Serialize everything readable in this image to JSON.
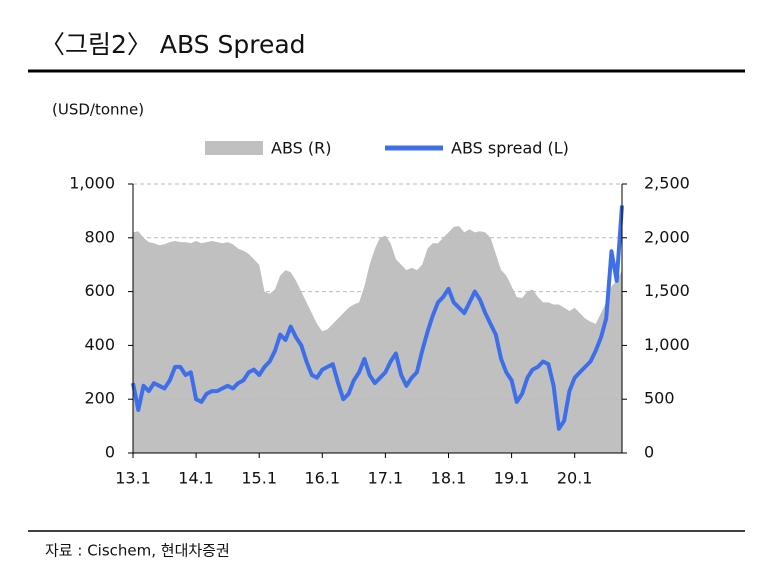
{
  "chart_data": {
    "type": "area-line",
    "title": "〈그림2〉 ABS Spread",
    "y_label": "(USD/tonne)",
    "source": "자료 : Cischem, 현대차증권",
    "categories": [
      "13.1",
      null,
      null,
      null,
      null,
      null,
      null,
      null,
      null,
      null,
      null,
      null,
      "14.1",
      null,
      null,
      null,
      null,
      null,
      null,
      null,
      null,
      null,
      null,
      null,
      "15.1",
      null,
      null,
      null,
      null,
      null,
      null,
      null,
      null,
      null,
      null,
      null,
      "16.1",
      null,
      null,
      null,
      null,
      null,
      null,
      null,
      null,
      null,
      null,
      null,
      "17.1",
      null,
      null,
      null,
      null,
      null,
      null,
      null,
      null,
      null,
      null,
      null,
      "18.1",
      null,
      null,
      null,
      null,
      null,
      null,
      null,
      null,
      null,
      null,
      null,
      "19.1",
      null,
      null,
      null,
      null,
      null,
      null,
      null,
      null,
      null,
      null,
      null,
      "20.1",
      null,
      null,
      null,
      null,
      null,
      null,
      null,
      null,
      null
    ],
    "series": [
      {
        "name": "ABS (R)",
        "color": "#c0c0c0",
        "axis": "y2",
        "kind": "area",
        "values": [
          2050,
          2060,
          2000,
          1960,
          1950,
          1930,
          1940,
          1960,
          1970,
          1960,
          1960,
          1950,
          1970,
          1950,
          1960,
          1970,
          1960,
          1950,
          1960,
          1940,
          1900,
          1880,
          1850,
          1800,
          1750,
          1500,
          1480,
          1520,
          1650,
          1700,
          1680,
          1600,
          1500,
          1400,
          1300,
          1200,
          1130,
          1150,
          1200,
          1250,
          1300,
          1350,
          1380,
          1400,
          1550,
          1750,
          1900,
          2000,
          2020,
          1950,
          1800,
          1750,
          1700,
          1720,
          1700,
          1750,
          1900,
          1950,
          1950,
          2000,
          2050,
          2100,
          2110,
          2050,
          2080,
          2050,
          2060,
          2050,
          2000,
          1850,
          1700,
          1650,
          1550,
          1450,
          1440,
          1500,
          1520,
          1450,
          1400,
          1400,
          1380,
          1380,
          1350,
          1320,
          1350,
          1300,
          1250,
          1220,
          1200,
          1300,
          1400,
          1550,
          1600,
          1700
        ]
      },
      {
        "name": "ABS spread (L)",
        "color": "#3f6fe8",
        "kind": "line",
        "values": [
          260,
          160,
          250,
          230,
          260,
          250,
          240,
          270,
          320,
          320,
          290,
          300,
          200,
          190,
          220,
          230,
          230,
          240,
          250,
          240,
          260,
          270,
          300,
          310,
          290,
          320,
          340,
          380,
          440,
          420,
          470,
          430,
          400,
          340,
          290,
          280,
          310,
          320,
          330,
          260,
          200,
          220,
          270,
          300,
          350,
          290,
          260,
          280,
          300,
          340,
          370,
          290,
          250,
          280,
          300,
          380,
          450,
          510,
          560,
          580,
          610,
          560,
          540,
          520,
          560,
          600,
          570,
          520,
          480,
          440,
          350,
          300,
          270,
          190,
          220,
          280,
          310,
          320,
          340,
          330,
          250,
          90,
          120,
          230,
          280,
          300,
          320,
          340,
          380,
          430,
          500,
          750,
          640,
          920
        ]
      }
    ],
    "ylim": [
      0,
      1000
    ],
    "yticks": [
      0,
      200,
      400,
      600,
      800,
      {
        "value": 1000,
        "label": "1,000"
      }
    ],
    "y2lim": [
      0,
      2500
    ],
    "y2ticks": [
      0,
      500,
      {
        "value": 1000,
        "label": "1,000"
      },
      {
        "value": 1500,
        "label": "1,500"
      },
      {
        "value": 2000,
        "label": "2,000"
      },
      {
        "value": 2500,
        "label": "2,500"
      }
    ],
    "grid": true,
    "legend": "top"
  }
}
